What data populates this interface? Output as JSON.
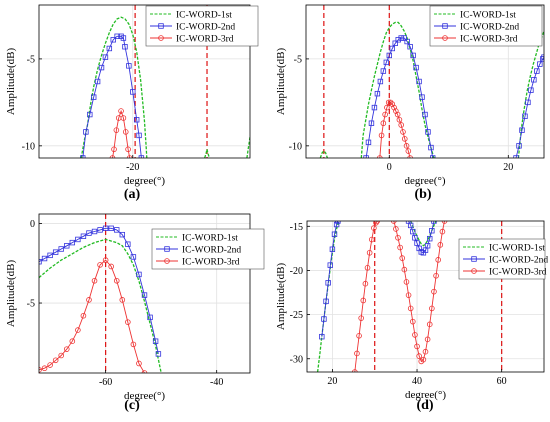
{
  "colors": {
    "first": "#22bb22",
    "second": "#3333dd",
    "third": "#ee3333",
    "vline": "#dd1111",
    "frame": "#000000",
    "grid": "#e2e2e2"
  },
  "chart_data": [
    {
      "type": "line",
      "panel_label": "(a)",
      "xlabel": "degree(°)",
      "ylabel": "Amplitude(dB)",
      "xlim": [
        -32,
        -5
      ],
      "ylim": [
        -10.7,
        -1.9
      ],
      "xticks": [
        -20
      ],
      "xtick_labels": [
        "-20"
      ],
      "yticks": [
        -5,
        -10
      ],
      "ytick_labels": [
        "-5",
        "-10"
      ],
      "grid": true,
      "legend_position": "top-right",
      "vlines": [
        -19.7,
        -10.5
      ],
      "series": [
        {
          "name": "IC-WORD-1st",
          "marker": "dot",
          "x": [
            -26.6,
            -26.2,
            -25.8,
            -25.4,
            -25,
            -24.5,
            -24,
            -23.5,
            -23,
            -22.5,
            -22,
            -21.5,
            -21,
            -20.5,
            -20,
            -19.5,
            -19,
            -18.7,
            -18.5,
            -18.4,
            -18.3,
            -18.2
          ],
          "y": [
            -10.7,
            -9.7,
            -8.8,
            -7.6,
            -6.6,
            -5.6,
            -4.8,
            -4.1,
            -3.5,
            -3.0,
            -2.7,
            -2.6,
            -2.7,
            -3.0,
            -3.6,
            -4.6,
            -6.2,
            -7.6,
            -8.6,
            -9.3,
            -10.0,
            -10.7
          ]
        },
        {
          "name": "IC-WORD-1st",
          "marker": "dot",
          "x": [
            -10.8,
            -10.6,
            -10.5,
            -10.4,
            -10.2
          ],
          "y": [
            -10.7,
            -10.4,
            -10.2,
            -10.4,
            -10.7
          ]
        },
        {
          "name": "IC-WORD-1st",
          "marker": "dot",
          "x": [
            -5.4,
            -5.2,
            -5.0
          ],
          "y": [
            -10.7,
            -10.1,
            -9.5
          ]
        },
        {
          "name": "IC-WORD-2nd",
          "marker": "square",
          "x": [
            -26.4,
            -26,
            -25.5,
            -25,
            -24.5,
            -24,
            -23.5,
            -23,
            -22.5,
            -22,
            -21.5,
            -21.2,
            -21,
            -20.5,
            -20,
            -19.5,
            -19.2,
            -18.9
          ],
          "y": [
            -10.7,
            -9.2,
            -8.2,
            -7.2,
            -6.3,
            -5.5,
            -4.9,
            -4.4,
            -3.9,
            -3.7,
            -3.7,
            -3.8,
            -4.3,
            -5.4,
            -6.9,
            -8.5,
            -9.4,
            -10.7
          ]
        },
        {
          "name": "IC-WORD-3rd",
          "marker": "circle",
          "x": [
            -22.6,
            -22.4,
            -22.1,
            -21.8,
            -21.5,
            -21.2,
            -20.9,
            -20.6,
            -20.4
          ],
          "y": [
            -10.7,
            -10.2,
            -9.1,
            -8.4,
            -8.0,
            -8.4,
            -9.2,
            -10.2,
            -10.7
          ]
        }
      ]
    },
    {
      "type": "line",
      "panel_label": "(b)",
      "xlabel": "degree(°)",
      "ylabel": "Amplitude(dB)",
      "xlim": [
        -14,
        26
      ],
      "ylim": [
        -10.7,
        -1.9
      ],
      "xticks": [
        0,
        20
      ],
      "xtick_labels": [
        "0",
        "20"
      ],
      "yticks": [
        -5,
        -10
      ],
      "ytick_labels": [
        "-5",
        "-10"
      ],
      "grid": true,
      "legend_position": "top-right",
      "vlines": [
        -11,
        0
      ],
      "series": [
        {
          "name": "IC-WORD-1st",
          "marker": "dot",
          "x": [
            -11.6,
            -11.3,
            -11,
            -10.7,
            -10.4
          ],
          "y": [
            -10.7,
            -10.4,
            -10.3,
            -10.4,
            -10.7
          ]
        },
        {
          "name": "IC-WORD-1st",
          "marker": "dot",
          "x": [
            -4.7,
            -4.4,
            -4,
            -3.5,
            -3,
            -2.5,
            -2,
            -1.5,
            -1,
            -0.5,
            0,
            0.5,
            1,
            1.5,
            2,
            2.5,
            3,
            3.5,
            4,
            4.5,
            5,
            5.5,
            6,
            6.5,
            7,
            7.5
          ],
          "y": [
            -10.7,
            -9.4,
            -8.6,
            -7.6,
            -6.8,
            -6.0,
            -5.3,
            -4.6,
            -4.0,
            -3.5,
            -3.2,
            -3.0,
            -2.9,
            -2.9,
            -3.1,
            -3.4,
            -3.8,
            -4.4,
            -5.1,
            -6.0,
            -6.9,
            -7.9,
            -8.8,
            -9.5,
            -10.1,
            -10.7
          ]
        },
        {
          "name": "IC-WORD-1st",
          "marker": "dot",
          "x": [
            21.7,
            22.2,
            22.7,
            23.2,
            23.7,
            24.2,
            24.7,
            25.2,
            25.7,
            26
          ],
          "y": [
            -10.7,
            -9.0,
            -7.8,
            -6.8,
            -6.0,
            -5.3,
            -4.7,
            -4.1,
            -3.7,
            -3.4
          ]
        },
        {
          "name": "IC-WORD-2nd",
          "marker": "square",
          "x": [
            -3.9,
            -3.5,
            -3,
            -2.5,
            -2,
            -1.5,
            -1,
            -0.5,
            0,
            0.5,
            1,
            1.5,
            2,
            2.5,
            3,
            3.5,
            4,
            4.5,
            5,
            5.5,
            6,
            6.5,
            7,
            7.3
          ],
          "y": [
            -10.7,
            -9.8,
            -8.7,
            -7.8,
            -7.0,
            -6.3,
            -5.7,
            -5.2,
            -4.8,
            -4.4,
            -4.1,
            -3.9,
            -3.8,
            -3.8,
            -4.0,
            -4.3,
            -4.8,
            -5.5,
            -6.3,
            -7.2,
            -8.2,
            -9.2,
            -10.1,
            -10.7
          ]
        },
        {
          "name": "IC-WORD-2nd",
          "marker": "square",
          "x": [
            21.3,
            21.8,
            22.3,
            22.8,
            23.3,
            23.8,
            24.3,
            24.8,
            25.3,
            25.8,
            26
          ],
          "y": [
            -10.7,
            -10.0,
            -9.1,
            -8.3,
            -7.5,
            -6.8,
            -6.2,
            -5.7,
            -5.3,
            -5.0,
            -4.9
          ]
        },
        {
          "name": "IC-WORD-3rd",
          "marker": "circle",
          "x": [
            -1.6,
            -1.3,
            -1,
            -0.7,
            -0.4,
            -0.1,
            0.2,
            0.5,
            0.8,
            1.1,
            1.4,
            1.7,
            2,
            2.3,
            2.6,
            2.9,
            3.2,
            3.5
          ],
          "y": [
            -10.7,
            -9.4,
            -8.7,
            -8.2,
            -7.8,
            -7.5,
            -7.5,
            -7.6,
            -7.8,
            -8.0,
            -8.2,
            -8.5,
            -8.8,
            -9.2,
            -9.6,
            -10.0,
            -10.3,
            -10.7
          ]
        }
      ]
    },
    {
      "type": "line",
      "panel_label": "(c)",
      "xlabel": "degree(°)",
      "ylabel": "Amplitude(dB)",
      "xlim": [
        -72,
        -34
      ],
      "ylim": [
        -9.4,
        0.6
      ],
      "xticks": [
        -60,
        -40
      ],
      "xtick_labels": [
        "-60",
        "-40"
      ],
      "yticks": [
        0,
        -5
      ],
      "ytick_labels": [
        "0",
        "-5"
      ],
      "grid": true,
      "legend_position": "top-right",
      "vlines": [
        -60
      ],
      "series": [
        {
          "name": "IC-WORD-1st",
          "marker": "dot",
          "x": [
            -72,
            -70,
            -68,
            -66,
            -64,
            -62,
            -60,
            -58,
            -57,
            -56,
            -55,
            -54,
            -53,
            -52,
            -51,
            -50
          ],
          "y": [
            -3.4,
            -2.8,
            -2.3,
            -1.9,
            -1.5,
            -1.2,
            -1.0,
            -1.2,
            -1.4,
            -1.9,
            -2.6,
            -3.6,
            -4.9,
            -6.3,
            -7.7,
            -9.4
          ]
        },
        {
          "name": "IC-WORD-2nd",
          "marker": "square",
          "x": [
            -72,
            -71,
            -70,
            -69,
            -68,
            -67,
            -66,
            -65,
            -64,
            -63,
            -62,
            -61,
            -60,
            -59,
            -58,
            -57,
            -56,
            -55,
            -54,
            -53,
            -52,
            -51,
            -50.5
          ],
          "y": [
            -2.4,
            -2.2,
            -2.0,
            -1.8,
            -1.6,
            -1.4,
            -1.2,
            -1.0,
            -0.8,
            -0.6,
            -0.5,
            -0.4,
            -0.3,
            -0.3,
            -0.4,
            -0.7,
            -1.3,
            -2.1,
            -3.2,
            -4.5,
            -5.9,
            -7.4,
            -8.2
          ]
        },
        {
          "name": "IC-WORD-3rd",
          "marker": "circle",
          "x": [
            -72,
            -71,
            -70,
            -69,
            -68,
            -67,
            -66,
            -65,
            -64,
            -63,
            -62,
            -61,
            -60,
            -59,
            -58,
            -57,
            -56,
            -55,
            -54,
            -53
          ],
          "y": [
            -9.2,
            -9.1,
            -8.9,
            -8.6,
            -8.3,
            -7.9,
            -7.4,
            -6.7,
            -5.8,
            -4.8,
            -3.6,
            -2.6,
            -2.3,
            -2.7,
            -3.6,
            -4.8,
            -6.2,
            -7.6,
            -8.8,
            -9.4
          ]
        }
      ]
    },
    {
      "type": "line",
      "panel_label": "(d)",
      "xlabel": "degree(°)",
      "ylabel": "Amplitude(dB)",
      "xlim": [
        14,
        70
      ],
      "ylim": [
        -31.5,
        -14.4
      ],
      "xticks": [
        20,
        40,
        60
      ],
      "xtick_labels": [
        "20",
        "40",
        "60"
      ],
      "yticks": [
        -15,
        -20,
        -25,
        -30
      ],
      "ytick_labels": [
        "-15",
        "-20",
        "-25",
        "-30"
      ],
      "grid": true,
      "legend_position": "top-right",
      "vlines": [
        30,
        60
      ],
      "series": [
        {
          "name": "IC-WORD-1st",
          "marker": "dot",
          "x": [
            16.5,
            17,
            17.5,
            18,
            18.5,
            19,
            19.5,
            20,
            20.5,
            21,
            21.5
          ],
          "y": [
            -31.5,
            -29.6,
            -27.5,
            -25.5,
            -23.5,
            -21.6,
            -19.7,
            -18.0,
            -16.4,
            -15.3,
            -14.4
          ]
        },
        {
          "name": "IC-WORD-1st",
          "marker": "dot",
          "x": [
            38.5,
            39,
            39.5,
            40,
            40.5,
            41,
            41.5,
            42,
            42.5,
            43,
            43.5,
            44,
            44.5
          ],
          "y": [
            -14.4,
            -15.0,
            -15.6,
            -16.1,
            -16.6,
            -17.0,
            -17.2,
            -17.0,
            -16.6,
            -16.1,
            -15.5,
            -14.9,
            -14.4
          ]
        },
        {
          "name": "IC-WORD-2nd",
          "marker": "square",
          "x": [
            17.5,
            18,
            18.5,
            19,
            19.5,
            20,
            20.5,
            21,
            21.3
          ],
          "y": [
            -27.5,
            -25.5,
            -23.5,
            -21.4,
            -19.4,
            -17.6,
            -15.9,
            -14.8,
            -14.4
          ]
        },
        {
          "name": "IC-WORD-2nd",
          "marker": "square",
          "x": [
            38,
            38.5,
            39,
            39.5,
            40,
            40.5,
            41,
            41.5,
            42,
            42.5,
            43,
            43.5,
            44
          ],
          "y": [
            -14.4,
            -14.9,
            -15.6,
            -16.3,
            -16.9,
            -17.5,
            -17.9,
            -18.0,
            -17.7,
            -17.2,
            -16.4,
            -15.5,
            -14.4
          ]
        },
        {
          "name": "IC-WORD-3rd",
          "marker": "circle",
          "x": [
            25.3,
            25.8,
            26.3,
            26.8,
            27.3,
            27.8,
            28.3,
            28.8,
            29.3,
            29.8,
            30.3,
            30.6
          ],
          "y": [
            -31.5,
            -29.4,
            -27.4,
            -25.4,
            -23.4,
            -21.5,
            -19.7,
            -18.0,
            -16.5,
            -15.2,
            -14.6,
            -14.4
          ]
        },
        {
          "name": "IC-WORD-3rd",
          "marker": "circle",
          "x": [
            34.5,
            35,
            35.5,
            36,
            36.5,
            37,
            37.5,
            38,
            38.5,
            39,
            39.5,
            40,
            40.5,
            41,
            41.5,
            42,
            42.5,
            43,
            43.5,
            44,
            44.5,
            45,
            45.5,
            46,
            46.5
          ],
          "y": [
            -14.4,
            -15.3,
            -16.3,
            -17.4,
            -18.6,
            -19.9,
            -21.3,
            -22.8,
            -24.3,
            -25.8,
            -27.3,
            -28.6,
            -29.7,
            -30.3,
            -30.1,
            -29.2,
            -27.8,
            -26.1,
            -24.3,
            -22.4,
            -20.6,
            -18.8,
            -17.1,
            -15.6,
            -14.4
          ]
        }
      ]
    }
  ],
  "legend_entries": [
    "IC-WORD-1st",
    "IC-WORD-2nd",
    "IC-WORD-3rd"
  ]
}
